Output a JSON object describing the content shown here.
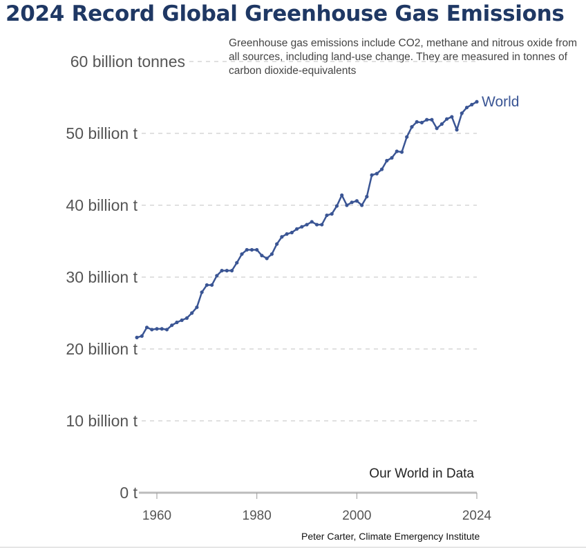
{
  "title": "2024 Record Global Greenhouse Gas Emissions",
  "subtitle": "Greenhouse gas emissions include CO2, methane and nitrous oxide from all sources, including land-use change. They are measured in tonnes of carbon dioxide-equivalents",
  "source": "Our World in Data",
  "credit": "Peter Carter, Climate Emergency Institute",
  "chart_data": {
    "type": "line",
    "title": "2024 Record Global Greenhouse Gas Emissions",
    "ylabel": "",
    "xlabel": "",
    "ylim": [
      0,
      60
    ],
    "xlim": [
      1956,
      2024
    ],
    "grid": true,
    "y_ticks": [
      {
        "value": 0,
        "label": "0 t"
      },
      {
        "value": 10,
        "label": "10 billion t"
      },
      {
        "value": 20,
        "label": "20 billion t"
      },
      {
        "value": 30,
        "label": "30 billion t"
      },
      {
        "value": 40,
        "label": "40 billion t"
      },
      {
        "value": 50,
        "label": "50 billion t"
      },
      {
        "value": 60,
        "label": "60 billion tonnes"
      }
    ],
    "x_ticks": [
      1960,
      1980,
      2000,
      2024
    ],
    "series": [
      {
        "name": "World",
        "color": "#3a5594",
        "x": [
          1956,
          1957,
          1958,
          1959,
          1960,
          1961,
          1962,
          1963,
          1964,
          1965,
          1966,
          1967,
          1968,
          1969,
          1970,
          1971,
          1972,
          1973,
          1974,
          1975,
          1976,
          1977,
          1978,
          1979,
          1980,
          1981,
          1982,
          1983,
          1984,
          1985,
          1986,
          1987,
          1988,
          1989,
          1990,
          1991,
          1992,
          1993,
          1994,
          1995,
          1996,
          1997,
          1998,
          1999,
          2000,
          2001,
          2002,
          2003,
          2004,
          2005,
          2006,
          2007,
          2008,
          2009,
          2010,
          2011,
          2012,
          2013,
          2014,
          2015,
          2016,
          2017,
          2018,
          2019,
          2020,
          2021,
          2022,
          2023,
          2024
        ],
        "y": [
          21.6,
          21.8,
          23.0,
          22.7,
          22.8,
          22.8,
          22.7,
          23.3,
          23.7,
          24.0,
          24.3,
          25.0,
          25.8,
          27.9,
          28.9,
          28.9,
          30.2,
          30.9,
          30.9,
          30.9,
          32.0,
          33.2,
          33.8,
          33.8,
          33.8,
          33.0,
          32.6,
          33.2,
          34.6,
          35.6,
          36.0,
          36.2,
          36.7,
          37.0,
          37.3,
          37.7,
          37.3,
          37.3,
          38.6,
          38.8,
          39.9,
          41.4,
          40.0,
          40.4,
          40.6,
          40.0,
          41.2,
          44.2,
          44.4,
          45.0,
          46.2,
          46.6,
          47.5,
          47.4,
          49.5,
          50.9,
          51.6,
          51.5,
          51.9,
          51.9,
          50.7,
          51.3,
          52.0,
          52.3,
          50.5,
          52.8,
          53.6,
          54.0,
          54.4
        ]
      }
    ]
  }
}
